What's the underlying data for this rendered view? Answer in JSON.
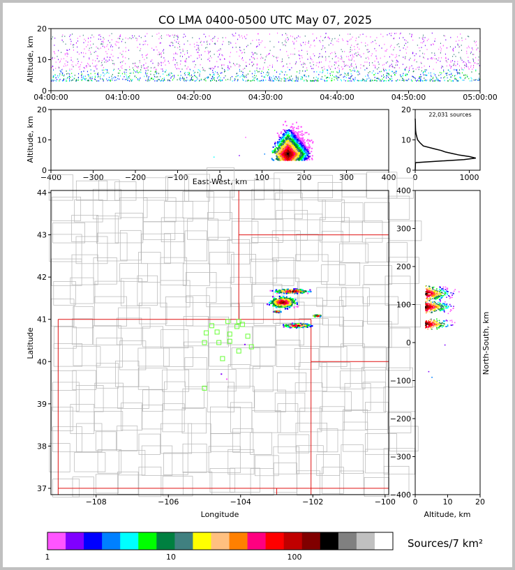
{
  "title": "CO LMA 0400-0500 UTC May 07, 2025",
  "colorbar": {
    "label": "Sources/7 km²",
    "tick_labels": [
      "1",
      "10",
      "100"
    ],
    "colors": [
      "#ff55ff",
      "#8000ff",
      "#0000ff",
      "#0080ff",
      "#00ffff",
      "#00ff00",
      "#008040",
      "#408080",
      "#ffff00",
      "#ffc080",
      "#ff8000",
      "#ff0080",
      "#ff0000",
      "#c00000",
      "#800000",
      "#000000",
      "#808080",
      "#c0c0c0",
      "#ffffff"
    ]
  },
  "colors": {
    "state_border": "#e01010",
    "county_border": "#b4b4b4",
    "station_marker": "#66ff33"
  },
  "chart_data": [
    {
      "id": "time-height",
      "type": "scatter",
      "xlabel": "",
      "ylabel": "Altitude, km",
      "x_tick_labels": [
        "04:00:00",
        "04:10:00",
        "04:20:00",
        "04:30:00",
        "04:40:00",
        "04:50:00",
        "05:00:00"
      ],
      "x_range_minutes": [
        0,
        60
      ],
      "ylim": [
        0,
        20
      ],
      "y_ticks": [
        0,
        10,
        20
      ],
      "altitude_band_km": [
        2.5,
        18
      ],
      "grid": false
    },
    {
      "id": "east-west-altitude",
      "type": "heatmap",
      "xlabel": "East-West, km",
      "ylabel": "Altitude, km",
      "xlim": [
        -400,
        400
      ],
      "x_ticks": [
        -400,
        -300,
        -200,
        -100,
        0,
        100,
        200,
        300,
        400
      ],
      "ylim": [
        0,
        20
      ],
      "y_ticks": [
        0,
        10,
        20
      ],
      "grid": false
    },
    {
      "id": "altitude-histogram",
      "type": "line",
      "annotation": "22,031 sources",
      "xlim": [
        0,
        1200
      ],
      "x_ticks": [
        0,
        1000
      ],
      "ylim": [
        0,
        20
      ],
      "y_ticks": [
        0,
        10,
        20
      ],
      "profile": [
        {
          "alt": 0,
          "count": 0
        },
        {
          "alt": 2.5,
          "count": 5
        },
        {
          "alt": 3.0,
          "count": 450
        },
        {
          "alt": 3.5,
          "count": 900
        },
        {
          "alt": 4.0,
          "count": 1120
        },
        {
          "alt": 4.5,
          "count": 1000
        },
        {
          "alt": 5.0,
          "count": 820
        },
        {
          "alt": 5.5,
          "count": 690
        },
        {
          "alt": 6.0,
          "count": 560
        },
        {
          "alt": 6.5,
          "count": 480
        },
        {
          "alt": 7.0,
          "count": 370
        },
        {
          "alt": 8.0,
          "count": 150
        },
        {
          "alt": 9.0,
          "count": 90
        },
        {
          "alt": 10.0,
          "count": 45
        },
        {
          "alt": 11.0,
          "count": 30
        },
        {
          "alt": 12.0,
          "count": 15
        },
        {
          "alt": 13.0,
          "count": 8
        },
        {
          "alt": 14.0,
          "count": 5
        },
        {
          "alt": 16.0,
          "count": 2
        },
        {
          "alt": 17.0,
          "count": 0
        }
      ]
    },
    {
      "id": "plan-view",
      "type": "heatmap",
      "xlabel": "Longitude",
      "ylabel": "Latitude",
      "xlim": [
        -109.25,
        -99.9
      ],
      "ylim": [
        36.85,
        44.05
      ],
      "x_ticks": [
        -108,
        -106,
        -104,
        -102,
        -100
      ],
      "x_tick_labels": [
        "−108",
        "−106",
        "−104",
        "−102",
        "−100"
      ],
      "y_ticks": [
        37,
        38,
        39,
        40,
        41,
        42,
        43,
        44
      ],
      "stations": [
        {
          "lon": -104.8,
          "lat": 40.85
        },
        {
          "lon": -104.05,
          "lat": 40.95
        },
        {
          "lon": -104.35,
          "lat": 40.95
        },
        {
          "lon": -103.95,
          "lat": 40.88
        },
        {
          "lon": -104.1,
          "lat": 40.83
        },
        {
          "lon": -104.65,
          "lat": 40.7
        },
        {
          "lon": -104.95,
          "lat": 40.68
        },
        {
          "lon": -104.3,
          "lat": 40.65
        },
        {
          "lon": -103.8,
          "lat": 40.6
        },
        {
          "lon": -104.3,
          "lat": 40.48
        },
        {
          "lon": -104.6,
          "lat": 40.45
        },
        {
          "lon": -105.0,
          "lat": 40.45
        },
        {
          "lon": -103.7,
          "lat": 40.35
        },
        {
          "lon": -104.05,
          "lat": 40.25
        },
        {
          "lon": -104.5,
          "lat": 40.07
        },
        {
          "lon": -105.0,
          "lat": 39.37
        }
      ],
      "storms": [
        {
          "lon": -102.6,
          "lat": 41.68,
          "w": 1.3,
          "h": 0.13,
          "n": 260
        },
        {
          "lon": -102.85,
          "lat": 41.42,
          "w": 1.0,
          "h": 0.35,
          "n": 340
        },
        {
          "lon": -102.45,
          "lat": 40.87,
          "w": 1.0,
          "h": 0.12,
          "n": 260
        },
        {
          "lon": -101.9,
          "lat": 41.1,
          "w": 0.35,
          "h": 0.06,
          "n": 50
        },
        {
          "lon": -103.0,
          "lat": 41.2,
          "w": 0.25,
          "h": 0.05,
          "n": 30
        }
      ]
    },
    {
      "id": "altitude-north-south",
      "type": "heatmap",
      "xlabel": "Altitude, km",
      "ylabel": "North-South, km",
      "xlim": [
        0,
        20
      ],
      "x_ticks": [
        0,
        10,
        20
      ],
      "ylim": [
        -400,
        400
      ],
      "y_ticks": [
        -400,
        -300,
        -200,
        -100,
        0,
        100,
        200,
        300,
        400
      ],
      "grid": false
    }
  ]
}
